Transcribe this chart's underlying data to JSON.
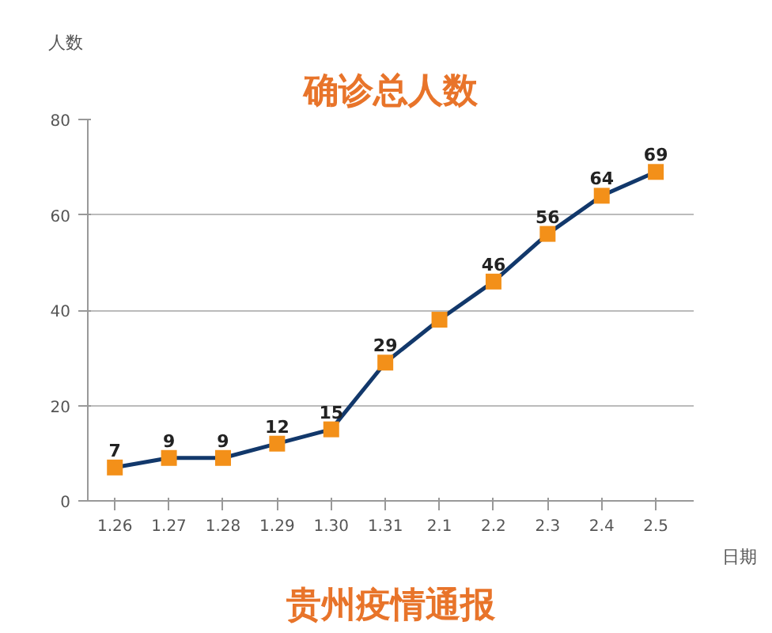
{
  "chart_data": {
    "type": "line",
    "title": "确诊总人数",
    "xlabel": "日期",
    "ylabel": "人数",
    "categories": [
      "1.26",
      "1.27",
      "1.28",
      "1.29",
      "1.30",
      "1.31",
      "2.1",
      "2.2",
      "2.3",
      "2.4",
      "2.5"
    ],
    "series": [
      {
        "color": "#12386b",
        "values": [
          7,
          9,
          9,
          12,
          15,
          29,
          38,
          46,
          56,
          64,
          69
        ],
        "value_labels": [
          "7",
          "9",
          "9",
          "12",
          "15",
          "29",
          null,
          "46",
          "56",
          "64",
          "69"
        ],
        "colors": [
          "#f39019",
          "#f39019",
          "#f39019",
          "#f39019",
          "#f39019",
          "#f39019",
          "#f39019",
          "#f39019",
          "#f39019",
          "#f39019",
          "#f39019"
        ]
      }
    ],
    "marker": "square",
    "ylim": [
      0,
      80
    ],
    "yticks": [
      0,
      20,
      40,
      60,
      80
    ],
    "grid": "y",
    "annotations": [
      "贵州疫情通报"
    ]
  }
}
